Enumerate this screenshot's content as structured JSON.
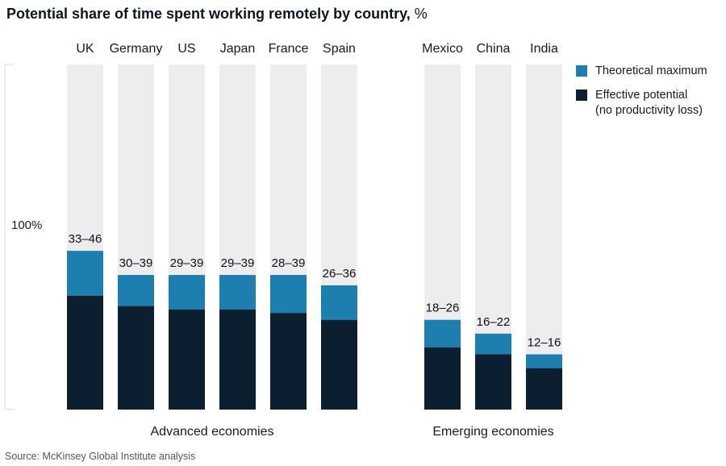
{
  "chart_data": {
    "type": "bar",
    "title": "Potential share of time spent working remotely by country,",
    "title_unit": "%",
    "stacked": true,
    "categories": [
      "UK",
      "Germany",
      "US",
      "Japan",
      "France",
      "Spain",
      "Mexico",
      "China",
      "India"
    ],
    "groups": [
      {
        "label": "Advanced economies",
        "categories": [
          "UK",
          "Germany",
          "US",
          "Japan",
          "France",
          "Spain"
        ]
      },
      {
        "label": "Emerging economies",
        "categories": [
          "Mexico",
          "China",
          "India"
        ]
      }
    ],
    "series": [
      {
        "name": "Effective potential\n(no productivity loss)",
        "values": [
          33,
          30,
          29,
          29,
          28,
          26,
          18,
          16,
          12
        ],
        "color": "#0b1f30"
      },
      {
        "name": "Theoretical maximum",
        "values": [
          46,
          39,
          39,
          39,
          39,
          36,
          26,
          22,
          16
        ],
        "color": "#1c7fb0"
      }
    ],
    "data_labels": [
      "33–46",
      "30–39",
      "29–39",
      "29–39",
      "28–39",
      "26–36",
      "18–26",
      "16–22",
      "12–16"
    ],
    "background_bar_color": "#ededef",
    "ylim": [
      0,
      100
    ],
    "ytick_label": "100%",
    "grid": false,
    "legend_position": "right"
  },
  "legend": {
    "theoretical_maximum": "Theoretical maximum",
    "effective_potential_line1": "Effective potential",
    "effective_potential_line2": "(no productivity loss)"
  },
  "source": "Source: McKinsey Global Institute analysis"
}
